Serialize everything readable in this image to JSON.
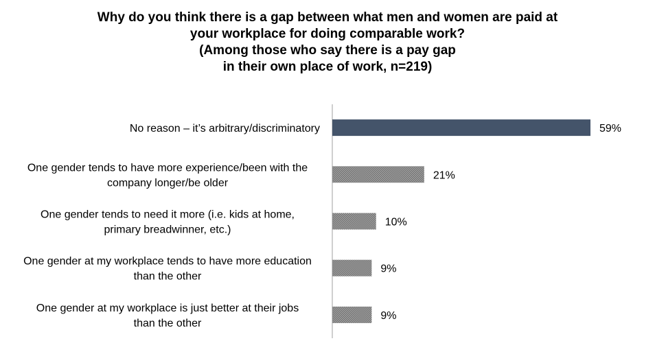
{
  "title_lines": [
    "Why do you think there is a gap between what men and women are paid at",
    "your workplace for doing comparable work?",
    "(Among those who say there is a pay gap",
    "in their own place of work, n=219)"
  ],
  "colors": {
    "highlight_bar": "#44546A",
    "other_bar": "#808080",
    "axis": "#BFBFBF"
  },
  "chart_data": {
    "type": "bar",
    "orientation": "horizontal",
    "categories": [
      [
        "No reason – it’s arbitrary/discriminatory"
      ],
      [
        "One gender tends to have more experience/been with the",
        "company longer/be older"
      ],
      [
        "One gender tends to need it more (i.e. kids at home,",
        "primary breadwinner, etc.)"
      ],
      [
        "One gender at my workplace tends to have more education",
        "than the other"
      ],
      [
        "One gender at my workplace is just better at their jobs",
        "than the other"
      ]
    ],
    "values": [
      59,
      21,
      10,
      9,
      9
    ],
    "value_labels": [
      "59%",
      "21%",
      "10%",
      "9%",
      "9%"
    ],
    "unit": "%",
    "xlim": [
      0,
      60
    ],
    "grid": false,
    "legend": "none"
  }
}
